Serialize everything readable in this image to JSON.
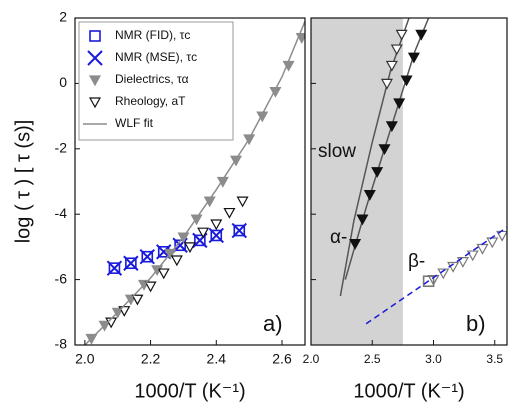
{
  "chart_data": [
    {
      "type": "scatter",
      "xlabel": "1000/T (K⁻¹)",
      "ylabel": "log ( τ ) [ τ (s)]",
      "xlim": [
        1.97,
        2.67
      ],
      "ylim": [
        -8,
        2
      ],
      "xticks": [
        {
          "value": 2.0,
          "label": "2.0"
        },
        {
          "value": 2.2,
          "label": "2.2"
        },
        {
          "value": 2.4,
          "label": "2.4"
        },
        {
          "value": 2.6,
          "label": "2.6"
        }
      ],
      "yticks": [
        -8,
        -6,
        -4,
        -2,
        0,
        2
      ],
      "show_ytick_labels": true,
      "legend": "top-left",
      "annotations": [
        "a)"
      ],
      "series": [
        {
          "name": "NMR (FID), τc",
          "color": "#1a1adb",
          "marker": "square-open",
          "x": [
            2.09,
            2.14,
            2.19,
            2.24,
            2.29,
            2.35,
            2.4,
            2.47
          ],
          "values": [
            -5.65,
            -5.5,
            -5.3,
            -5.15,
            -4.95,
            -4.8,
            -4.65,
            -4.5
          ]
        },
        {
          "name": "NMR (MSE), τc",
          "color": "#1a1adb",
          "marker": "x",
          "x": [
            2.09,
            2.14,
            2.19,
            2.24,
            2.29,
            2.35,
            2.4,
            2.47
          ],
          "values": [
            -5.65,
            -5.5,
            -5.3,
            -5.15,
            -4.95,
            -4.8,
            -4.65,
            -4.5
          ]
        },
        {
          "name": "Dielectrics, τα",
          "color": "#8c8c8c",
          "marker": "triangle-down-filled",
          "x": [
            2.02,
            2.06,
            2.1,
            2.14,
            2.18,
            2.22,
            2.26,
            2.3,
            2.34,
            2.38,
            2.42,
            2.46,
            2.5,
            2.54,
            2.58,
            2.62,
            2.66
          ],
          "values": [
            -7.8,
            -7.4,
            -7.0,
            -6.6,
            -6.15,
            -5.7,
            -5.2,
            -4.7,
            -4.15,
            -3.6,
            -3.0,
            -2.35,
            -1.7,
            -1.0,
            -0.25,
            0.55,
            1.4
          ]
        },
        {
          "name": "Rheology, aT",
          "color": "#111111",
          "marker": "triangle-down-open",
          "x": [
            2.08,
            2.12,
            2.16,
            2.2,
            2.24,
            2.28,
            2.32,
            2.36,
            2.4,
            2.44,
            2.48
          ],
          "values": [
            -7.3,
            -6.95,
            -6.6,
            -6.2,
            -5.8,
            -5.4,
            -5.0,
            -4.55,
            -4.3,
            -3.95,
            -3.6
          ]
        },
        {
          "name": "WLF fit",
          "color": "#8c8c8c",
          "line": "solid",
          "x": [
            2.0,
            2.1,
            2.2,
            2.3,
            2.4,
            2.5,
            2.6,
            2.67
          ],
          "values": [
            -8.0,
            -7.0,
            -5.95,
            -4.7,
            -3.25,
            -1.7,
            0.2,
            1.9
          ]
        }
      ]
    },
    {
      "type": "scatter",
      "xlabel": "1000/T (K⁻¹)",
      "xlim": [
        2.0,
        3.6
      ],
      "ylim": [
        -8,
        2
      ],
      "xticks": [
        {
          "value": 2.0,
          "label": "2.0"
        },
        {
          "value": 2.5,
          "label": "2.5"
        },
        {
          "value": 3.0,
          "label": "3.0"
        },
        {
          "value": 3.5,
          "label": "3.5"
        }
      ],
      "yticks": [
        -8,
        -6,
        -4,
        -2,
        0,
        2
      ],
      "show_ytick_labels": false,
      "shade_x": [
        2.0,
        2.75
      ],
      "shade_color": "#d3d3d3",
      "annotations": [
        "slow",
        "α-",
        "β-",
        "b)"
      ],
      "series": [
        {
          "color": "#555555",
          "line": "solid",
          "x": [
            2.24,
            2.35,
            2.5,
            2.65,
            2.8
          ],
          "values": [
            -6.5,
            -4.2,
            -1.8,
            0.4,
            2.0
          ]
        },
        {
          "color": "#333333",
          "marker": "triangle-down-open",
          "x": [
            2.62,
            2.66,
            2.7,
            2.74
          ],
          "values": [
            0.0,
            0.55,
            1.05,
            1.5
          ]
        },
        {
          "color": "#555555",
          "line": "solid",
          "x": [
            2.28,
            2.45,
            2.65,
            2.85,
            2.96
          ],
          "values": [
            -6.0,
            -3.8,
            -1.4,
            1.0,
            2.0
          ]
        },
        {
          "color": "#111111",
          "marker": "triangle-down-filled",
          "x": [
            2.36,
            2.42,
            2.48,
            2.54,
            2.6,
            2.66,
            2.72,
            2.78,
            2.84,
            2.9
          ],
          "values": [
            -4.9,
            -4.15,
            -3.4,
            -2.7,
            -2.0,
            -1.3,
            -0.6,
            0.1,
            0.8,
            1.5
          ]
        },
        {
          "color": "#777777",
          "marker": "triangle-down-open",
          "x": [
            3.0,
            3.08,
            3.16,
            3.24,
            3.32,
            3.4,
            3.48,
            3.56
          ],
          "values": [
            -6.0,
            -5.8,
            -5.6,
            -5.45,
            -5.25,
            -5.05,
            -4.85,
            -4.65
          ]
        },
        {
          "color": "#777777",
          "marker": "square-open",
          "x": [
            2.96
          ],
          "values": [
            -6.05
          ]
        },
        {
          "color": "#1a1adb",
          "line": "dashed",
          "x": [
            2.45,
            3.6
          ],
          "values": [
            -7.35,
            -4.4
          ]
        }
      ]
    }
  ]
}
